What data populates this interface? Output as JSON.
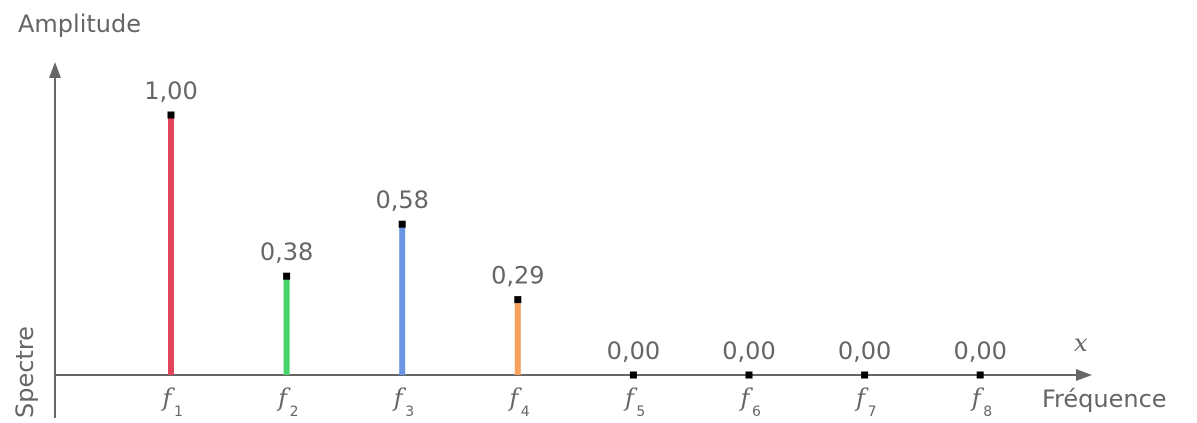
{
  "chart_data": {
    "type": "bar",
    "categories": [
      "f1",
      "f2",
      "f3",
      "f4",
      "f5",
      "f6",
      "f7",
      "f8"
    ],
    "tick_labels": [
      {
        "base": "f",
        "sub": "1"
      },
      {
        "base": "f",
        "sub": "2"
      },
      {
        "base": "f",
        "sub": "3"
      },
      {
        "base": "f",
        "sub": "4"
      },
      {
        "base": "f",
        "sub": "5"
      },
      {
        "base": "f",
        "sub": "6"
      },
      {
        "base": "f",
        "sub": "7"
      },
      {
        "base": "f",
        "sub": "8"
      }
    ],
    "values": [
      1.0,
      0.38,
      0.58,
      0.29,
      0.0,
      0.0,
      0.0,
      0.0
    ],
    "value_labels": [
      "1,00",
      "0,38",
      "0,58",
      "0,29",
      "0,00",
      "0,00",
      "0,00",
      "0,00"
    ],
    "colors": [
      "#e2455a",
      "#45d36a",
      "#6b95e3",
      "#f5a05c",
      "#000000",
      "#000000",
      "#000000",
      "#000000"
    ],
    "ylabel": "Amplitude",
    "xlabel": "Fréquence",
    "x_variable": "x",
    "side_label": "Spectre",
    "ylim": [
      0,
      1.0
    ],
    "grid": false
  }
}
